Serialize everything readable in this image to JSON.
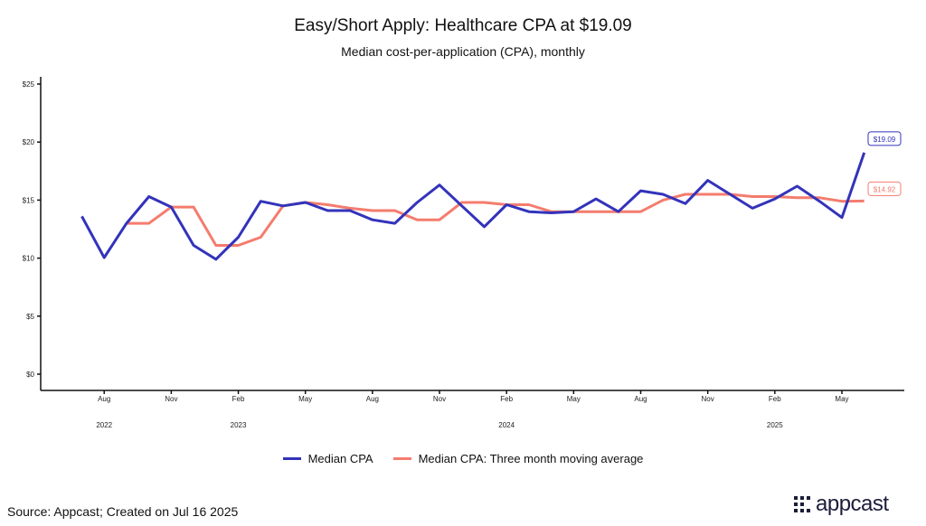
{
  "chart_data": {
    "type": "line",
    "title": "Easy/Short Apply: Healthcare CPA at $19.09",
    "subtitle": "Median cost-per-application (CPA), monthly",
    "xlabel": "",
    "ylabel": "",
    "ylim": [
      0,
      25
    ],
    "y_ticks": [
      "$0",
      "$5",
      "$10",
      "$15",
      "$20",
      "$25"
    ],
    "y_tick_values": [
      0,
      5,
      10,
      15,
      20,
      25
    ],
    "x_start": "2022-07",
    "x_ticks": [
      {
        "label": "Aug",
        "index": 1
      },
      {
        "label": "Nov",
        "index": 4
      },
      {
        "label": "Feb",
        "index": 7
      },
      {
        "label": "May",
        "index": 10
      },
      {
        "label": "Aug",
        "index": 13
      },
      {
        "label": "Nov",
        "index": 16
      },
      {
        "label": "Feb",
        "index": 19
      },
      {
        "label": "May",
        "index": 22
      },
      {
        "label": "Aug",
        "index": 25
      },
      {
        "label": "Nov",
        "index": 28
      },
      {
        "label": "Feb",
        "index": 31
      },
      {
        "label": "May",
        "index": 34
      }
    ],
    "year_labels": [
      {
        "label": "2022",
        "index": 1
      },
      {
        "label": "2023",
        "index": 7
      },
      {
        "label": "2024",
        "index": 19
      },
      {
        "label": "2025",
        "index": 31
      }
    ],
    "series": [
      {
        "name": "Median CPA",
        "color": "#3333bb",
        "start_index": 0,
        "values": [
          13.6,
          10.05,
          13.0,
          15.3,
          14.4,
          11.1,
          9.9,
          11.8,
          14.9,
          14.5,
          14.8,
          14.1,
          14.1,
          13.3,
          13.0,
          14.8,
          16.3,
          14.5,
          12.7,
          14.6,
          14.0,
          13.9,
          14.0,
          15.1,
          14.0,
          15.8,
          15.5,
          14.7,
          16.7,
          15.5,
          14.3,
          15.1,
          16.2,
          14.9,
          13.5,
          19.09
        ],
        "end_label": "$19.09"
      },
      {
        "name": "Median CPA: Three month moving average",
        "color": "#f47c6e",
        "start_index": 2,
        "values": [
          13.0,
          13.0,
          14.4,
          14.4,
          11.1,
          11.1,
          11.8,
          14.5,
          14.8,
          14.6,
          14.3,
          14.1,
          14.1,
          13.3,
          13.3,
          14.8,
          14.8,
          14.6,
          14.6,
          14.0,
          14.0,
          14.0,
          14.0,
          14.0,
          15.0,
          15.5,
          15.5,
          15.5,
          15.3,
          15.3,
          15.2,
          15.2,
          14.9,
          14.92
        ],
        "end_label": "$14.92"
      }
    ],
    "grid": false,
    "legend_position": "bottom"
  },
  "footer": {
    "source": "Source: Appcast; Created on Jul 16 2025",
    "logo": "appcast"
  }
}
